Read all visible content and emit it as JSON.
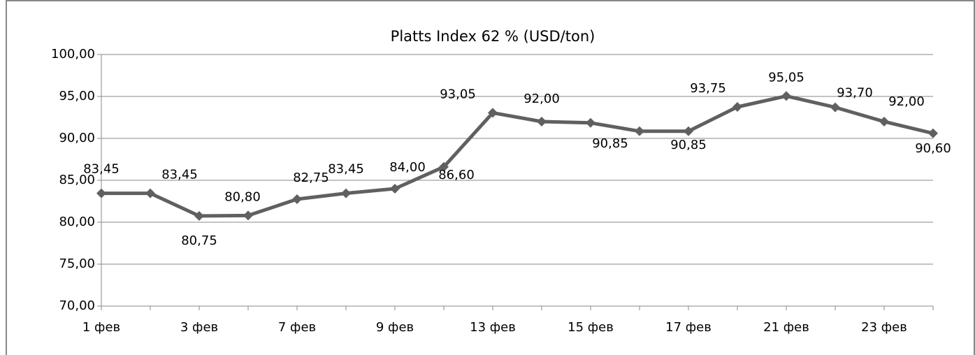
{
  "chart_data": {
    "type": "line",
    "title": "Platts Index 62 % (USD/ton)",
    "categories": [
      "1 фев",
      null,
      "3 фев",
      null,
      "7 фев",
      null,
      "9 фев",
      null,
      "13 фев",
      null,
      "15 фев",
      null,
      "17 фев",
      null,
      "21 фев",
      null,
      "23 фев",
      null
    ],
    "series": [
      {
        "name": "Platts Index 62 %",
        "color": "#606060",
        "values": [
          83.45,
          83.45,
          80.75,
          80.8,
          82.75,
          83.45,
          84.0,
          86.6,
          93.05,
          92.0,
          91.85,
          90.85,
          90.85,
          93.75,
          95.05,
          93.7,
          92.0,
          90.6
        ],
        "value_labels": [
          "83,45",
          "83,45",
          "80,75",
          "80,80",
          "82,75",
          "83,45",
          "84,00",
          "86,60",
          "93,05",
          "92,00",
          null,
          "90,85",
          "90,85",
          "93,75",
          "95,05",
          "93,70",
          "92,00",
          "90,60"
        ]
      }
    ],
    "ylim": [
      70,
      100
    ],
    "yticks": [
      {
        "value": 70,
        "label": "70,00"
      },
      {
        "value": 75,
        "label": "75,00"
      },
      {
        "value": 80,
        "label": "80,00"
      },
      {
        "value": 85,
        "label": "85,00"
      },
      {
        "value": 90,
        "label": "90,00"
      },
      {
        "value": 95,
        "label": "95,00"
      },
      {
        "value": 100,
        "label": "100,00"
      }
    ],
    "grid": true
  }
}
